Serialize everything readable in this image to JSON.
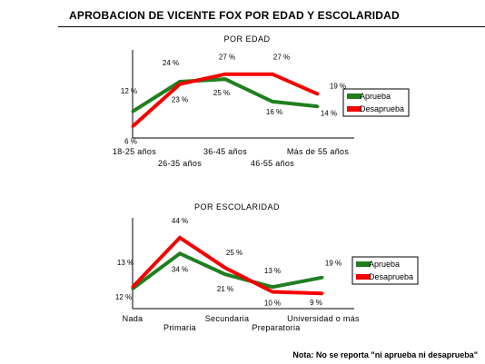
{
  "page_title": "APROBACION DE VICENTE  FOX POR EDAD Y ESCOLARIDAD",
  "note": "Nota: No se reporta \"ni aprueba ni desaprueba\"",
  "colors": {
    "aprueba": "#1f7f1f",
    "desaprueba": "#f40000"
  },
  "chart_data": [
    {
      "type": "line",
      "title": "POR EDAD",
      "categories": [
        "18-25 años",
        "26-35 años",
        "36-45 años",
        "46-55 años",
        "Más de 55 años"
      ],
      "series": [
        {
          "name": "Aprueba",
          "values": [
            12,
            24,
            25,
            16,
            14
          ],
          "labels": [
            "12 %",
            "24 %",
            "25 %",
            "16 %",
            "14 %"
          ]
        },
        {
          "name": "Desaprueba",
          "values": [
            6,
            23,
            27,
            27,
            19
          ],
          "labels": [
            "6 %",
            "23 %",
            "27 %",
            "27 %",
            "19 %"
          ]
        }
      ],
      "legend_position": "right",
      "grid": false
    },
    {
      "type": "line",
      "title": "POR ESCOLARIDAD",
      "categories": [
        "Nada",
        "Primaria",
        "Secundaria",
        "Preparatoria",
        "Universidad o más"
      ],
      "series": [
        {
          "name": "Aprueba",
          "values": [
            12,
            34,
            21,
            13,
            19
          ],
          "labels": [
            "12 %",
            "34 %",
            "21 %",
            "13 %",
            "19 %"
          ]
        },
        {
          "name": "Desaprueba",
          "values": [
            13,
            44,
            25,
            10,
            9
          ],
          "labels": [
            "13 %",
            "44 %",
            "25 %",
            "10 %",
            "9 %"
          ]
        }
      ],
      "legend_position": "right",
      "grid": false
    }
  ]
}
